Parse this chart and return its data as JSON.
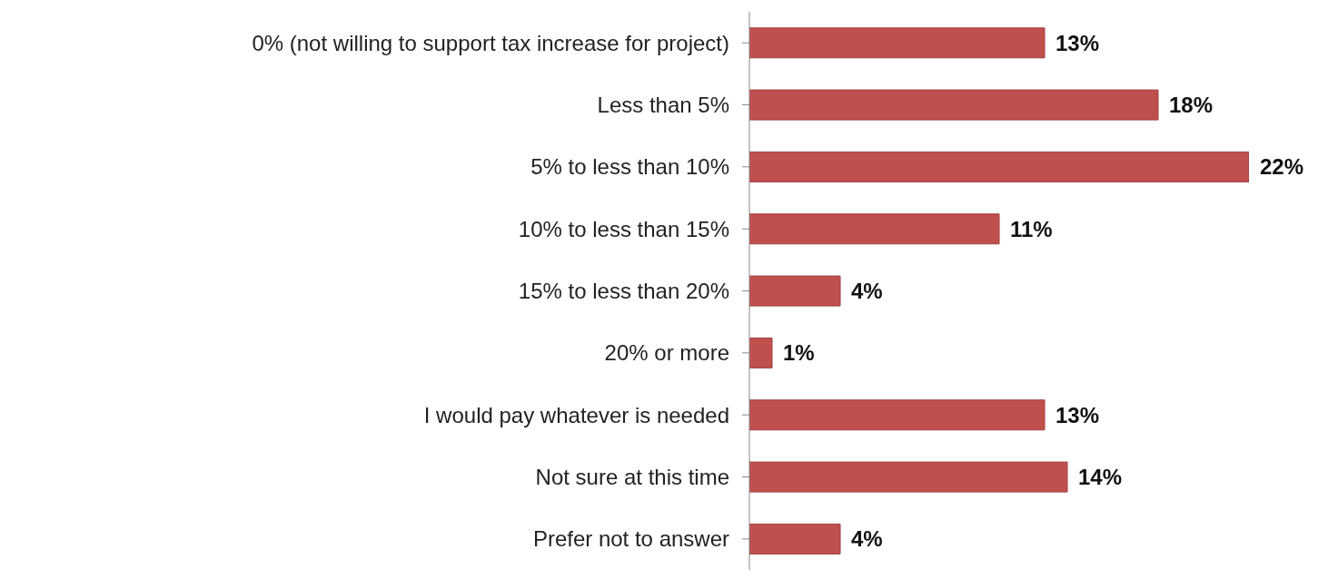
{
  "chart_data": {
    "type": "bar",
    "orientation": "horizontal",
    "categories": [
      "0% (not willing to support tax increase for project)",
      "Less than 5%",
      "5% to less than 10%",
      "10% to less than 15%",
      "15% to less than 20%",
      "20% or more",
      "I would pay whatever is needed",
      "Not sure at this time",
      "Prefer not to answer"
    ],
    "values": [
      13,
      18,
      22,
      11,
      4,
      1,
      13,
      14,
      4
    ],
    "value_labels": [
      "13%",
      "18%",
      "22%",
      "11%",
      "4%",
      "1%",
      "13%",
      "14%",
      "4%"
    ],
    "color": "#c0504d",
    "grid": false,
    "legend": false
  }
}
